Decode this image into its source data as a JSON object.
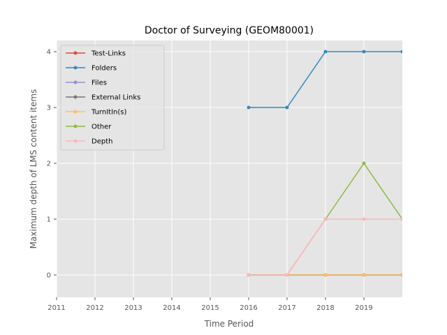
{
  "chart_data": {
    "type": "line",
    "title": "Doctor of Surveying (GEOM80001)",
    "xlabel": "Time Period",
    "ylabel": "Maximum depth of LMS content items",
    "x_ticks": [
      "2011",
      "2012",
      "2013",
      "2014",
      "2015",
      "2016",
      "2017",
      "2018",
      "2019"
    ],
    "y_ticks": [
      "0",
      "1",
      "2",
      "3",
      "4"
    ],
    "xlim": [
      2011,
      2020
    ],
    "ylim": [
      -0.4,
      4.2
    ],
    "grid": true,
    "legend_position": "top-left",
    "x": [
      2016,
      2017,
      2018,
      2019,
      2020
    ],
    "series": [
      {
        "name": "Test-Links",
        "color": "#E24A33",
        "values": [
          0,
          0,
          0,
          0,
          0
        ]
      },
      {
        "name": "Folders",
        "color": "#348ABD",
        "values": [
          3,
          3,
          4,
          4,
          4
        ]
      },
      {
        "name": "Files",
        "color": "#988ED5",
        "values": [
          0,
          0,
          0,
          0,
          0
        ]
      },
      {
        "name": "External Links",
        "color": "#777777",
        "values": [
          0,
          0,
          0,
          0,
          0
        ]
      },
      {
        "name": "TurnItIn(s)",
        "color": "#FBC15E",
        "values": [
          0,
          0,
          0,
          0,
          0
        ]
      },
      {
        "name": "Other",
        "color": "#8EBA42",
        "values": [
          0,
          0,
          1,
          2,
          1
        ]
      },
      {
        "name": "Depth",
        "color": "#FFB5B8",
        "values": [
          0,
          0,
          1,
          1,
          1
        ]
      }
    ]
  }
}
